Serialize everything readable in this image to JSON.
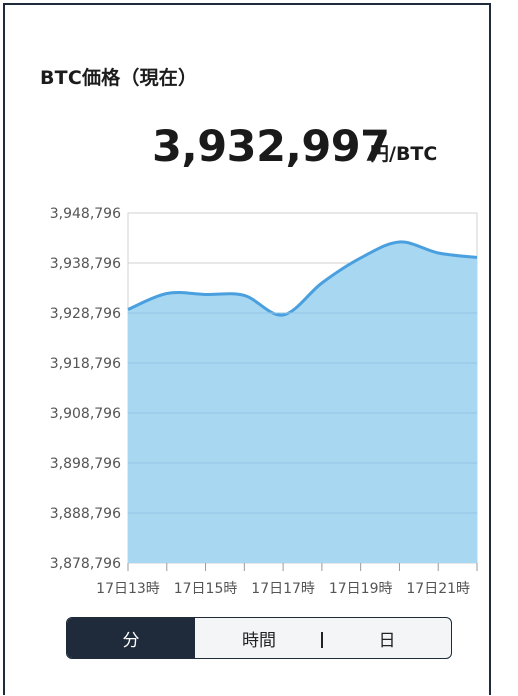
{
  "header": {
    "title": "BTC価格（現在）",
    "price": "3,932,997",
    "unit": "円/BTC"
  },
  "tabs": [
    {
      "label": "分",
      "active": true
    },
    {
      "label": "時間",
      "active": false
    },
    {
      "label": "日",
      "active": false
    }
  ],
  "colors": {
    "line": "#4a9fdf",
    "fill": "#a8d7f1",
    "active_tab": "#1f2a3a",
    "grid": "#d0d0d0"
  },
  "chart_data": {
    "type": "area",
    "y_tick_labels": [
      "3,948,796",
      "3,938,796",
      "3,928,796",
      "3,918,796",
      "3,908,796",
      "3,898,796",
      "3,888,796",
      "3,878,796"
    ],
    "x_tick_labels": [
      "17日13時",
      "17日15時",
      "17日17時",
      "17日19時",
      "17日21時"
    ],
    "ylim": [
      3878796,
      3948796
    ],
    "x": [
      "17日13時",
      "17日14時",
      "17日15時",
      "17日16時",
      "17日17時",
      "17日18時",
      "17日19時",
      "17日20時",
      "17日21時",
      "17日22時"
    ],
    "values": [
      3929500,
      3932700,
      3932500,
      3932300,
      3928400,
      3934800,
      3939800,
      3943000,
      3940800,
      3939900
    ],
    "grid": true,
    "legend": "none"
  }
}
